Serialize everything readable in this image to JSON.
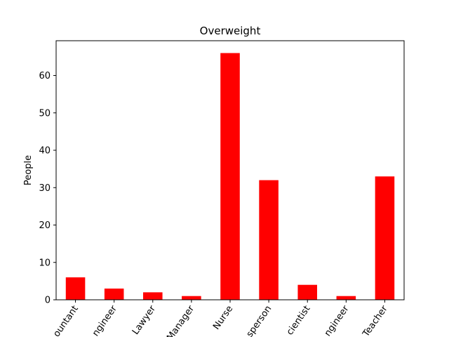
{
  "chart_data": {
    "type": "bar",
    "title": "Overweight",
    "xlabel": "",
    "ylabel": "People",
    "categories": [
      "Accountant",
      "Engineer",
      "Lawyer",
      "Manager",
      "Nurse",
      "Salesperson",
      "Scientist",
      "Software Engineer",
      "Teacher"
    ],
    "category_labels_visible": [
      "ountant",
      "ngineer",
      "Lawyer",
      "Manager",
      "Nurse",
      "sperson",
      "cientist",
      "ngineer",
      "Teacher"
    ],
    "values": [
      6,
      3,
      2,
      1,
      66,
      32,
      4,
      1,
      33
    ],
    "ylim": [
      0,
      69.3
    ],
    "yticks": [
      0,
      10,
      20,
      30,
      40,
      50,
      60
    ],
    "bar_color": "#ff0000",
    "grid": false,
    "legend": "none"
  }
}
